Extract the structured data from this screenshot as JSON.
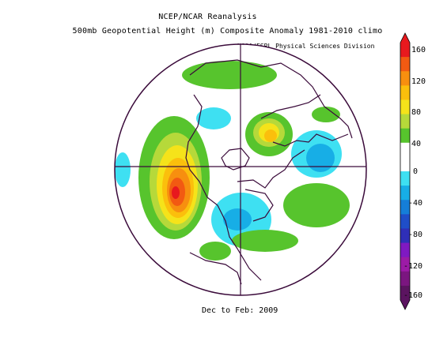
{
  "titles": {
    "line1": "NCEP/NCAR Reanalysis",
    "line2": "500mb Geopotential Height (m) Composite Anomaly 1981-2010 climo",
    "credit": "NOAA/ESRL Physical Sciences Division",
    "footer": "Dec to Feb: 2009"
  },
  "colorbar": {
    "labels": [
      "160",
      "120",
      "80",
      "40",
      "0",
      "-40",
      "-80",
      "-120",
      "-160"
    ],
    "colors": [
      "#e8191e",
      "#f25a12",
      "#f78f0f",
      "#fbbf0c",
      "#f5e31a",
      "#b6d93a",
      "#57c42d",
      "#ffffff",
      "#ffffff",
      "#3ee0f2",
      "#17aee6",
      "#157ed8",
      "#1f4ec8",
      "#2f2fb8",
      "#7f19c2",
      "#9c1ba6",
      "#7b1680",
      "#5b1460"
    ]
  },
  "map": {
    "projection": "north polar stereographic",
    "anomaly_regions": [
      {
        "name": "north pacific positive anomaly",
        "level": 160
      },
      {
        "name": "north atlantic negative anomaly",
        "level": -40
      },
      {
        "name": "eastern europe negative anomaly",
        "level": -40
      },
      {
        "name": "arctic positive anomaly",
        "level": 80
      }
    ]
  }
}
